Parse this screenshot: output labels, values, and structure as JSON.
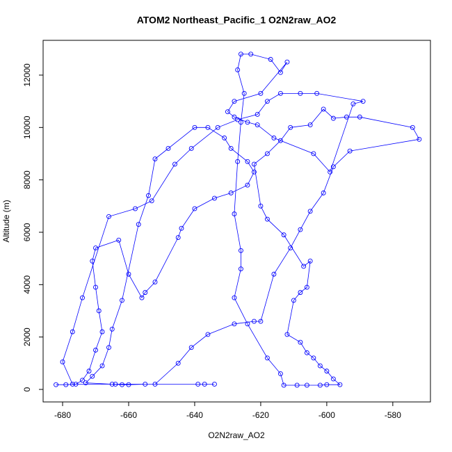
{
  "chart_data": {
    "type": "line",
    "title": "ATOM2 Northeast_Pacific_1 O2N2raw_AO2",
    "x_label": "O2N2raw_AO2",
    "y_label": "Altitude (m)",
    "color": "#0000ff",
    "markers": true,
    "xlim": [
      -685.9,
      -568.6
    ],
    "ylim": [
      -478,
      13327
    ],
    "xticks": [
      -680,
      -660,
      -640,
      -620,
      -600,
      -580
    ],
    "yticks": [
      0,
      2000,
      4000,
      6000,
      8000,
      10000,
      12000
    ],
    "x": [
      -682,
      -679,
      -676,
      -674,
      -672,
      -670,
      -668,
      -669,
      -670,
      -671,
      -670,
      -663,
      -660,
      -656,
      -655,
      -652,
      -645,
      -644,
      -640,
      -634,
      -629,
      -624,
      -622,
      -624,
      -629,
      -631,
      -636,
      -640,
      -648,
      -652,
      -654,
      -657,
      -662,
      -665,
      -666,
      -668,
      -671,
      -673,
      -665,
      -662,
      -660,
      -655,
      -652,
      -645,
      -641,
      -636,
      -628,
      -622,
      -620,
      -616,
      -611,
      -608,
      -605,
      -601,
      -598,
      -593,
      -572,
      -574,
      -590,
      -594,
      -598,
      -601,
      -605,
      -611,
      -614,
      -618,
      -622,
      -620,
      -618,
      -613,
      -607,
      -605,
      -606,
      -608,
      -610,
      -612,
      -608,
      -606,
      -604,
      -602,
      -600,
      -598,
      -596,
      -600,
      -602,
      -606,
      -609,
      -613,
      -614,
      -618,
      -624,
      -628,
      -626,
      -626,
      -628,
      -627,
      -626,
      -625,
      -627,
      -626,
      -623,
      -617,
      -614,
      -612,
      -620,
      -628,
      -630,
      -628,
      -624,
      -621,
      -616,
      -604,
      -599,
      -592,
      -589,
      -603,
      -608,
      -614,
      -618,
      -621,
      -627,
      -633,
      -641,
      -646,
      -653,
      -658,
      -666,
      -674,
      -677,
      -680,
      -677,
      -664,
      -639,
      -637,
      -634
    ],
    "values": [
      180,
      180,
      200,
      350,
      700,
      1500,
      2200,
      3000,
      3900,
      4900,
      5400,
      5700,
      4400,
      3500,
      3700,
      4100,
      5800,
      6150,
      6900,
      7300,
      7500,
      7800,
      8300,
      8700,
      9200,
      9600,
      10000,
      10000,
      9200,
      8800,
      7400,
      6300,
      3400,
      2300,
      1600,
      900,
      500,
      250,
      200,
      180,
      180,
      200,
      200,
      1000,
      1600,
      2100,
      2500,
      2600,
      2600,
      4400,
      5400,
      6100,
      6800,
      7500,
      8500,
      9100,
      9550,
      10000,
      10400,
      10400,
      10350,
      10700,
      10100,
      10000,
      9500,
      9000,
      8600,
      7000,
      6500,
      5900,
      4700,
      4900,
      3900,
      3700,
      3400,
      2100,
      1800,
      1400,
      1200,
      900,
      700,
      400,
      180,
      180,
      160,
      160,
      160,
      160,
      600,
      1200,
      2500,
      3500,
      4600,
      5300,
      6700,
      8700,
      10200,
      11300,
      12200,
      12800,
      12800,
      12600,
      12100,
      12500,
      11300,
      11000,
      10600,
      10400,
      10200,
      10100,
      9600,
      9000,
      8300,
      10900,
      11000,
      11300,
      11300,
      11300,
      11000,
      10500,
      10300,
      10000,
      9200,
      8600,
      7200,
      6900,
      6600,
      3500,
      2200,
      1050,
      200,
      200,
      200,
      200,
      200
    ]
  }
}
